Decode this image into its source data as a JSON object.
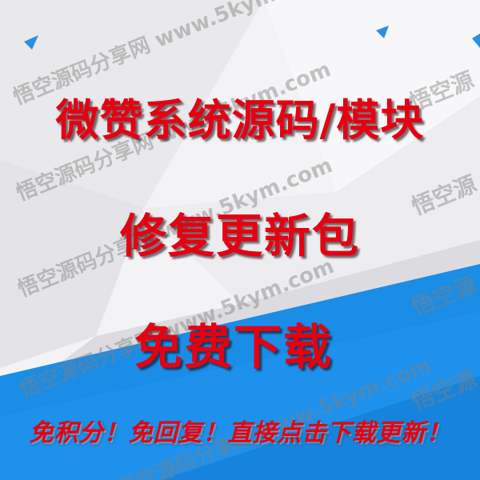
{
  "banner": {
    "headline": "微赞系统源码/模块",
    "subheadline": "修复更新包",
    "cta": "免费下载",
    "notice": "免积分！免回复！直接点击下载更新！"
  },
  "watermark": {
    "text": "悟空源码分享网 www.5kym.com",
    "edge_text": "悟空源"
  },
  "colors": {
    "headline_red": "#e60012",
    "background_blue": "#1a8de6",
    "background_gray": "#f2f2f4"
  }
}
